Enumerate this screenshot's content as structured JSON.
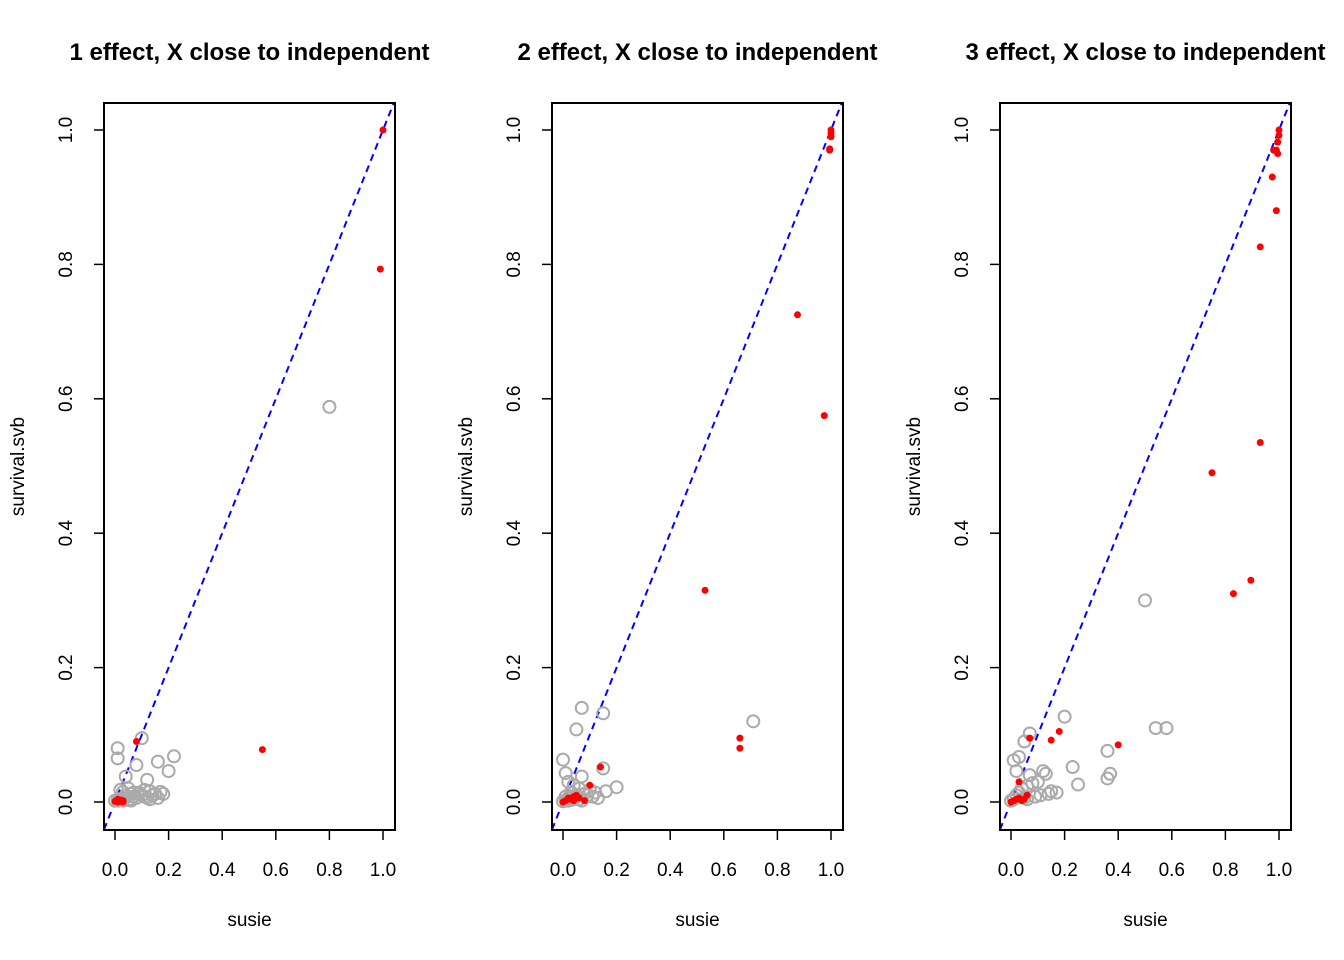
{
  "colors": {
    "reference_line": "#0000ff",
    "causal": "#ff0000",
    "non_causal": "#aaaaaa"
  },
  "chart_data": [
    {
      "type": "scatter",
      "title": "1 effect, X close to independent",
      "xlabel": "susie",
      "ylabel": "survival.svb",
      "xlim": [
        0,
        1
      ],
      "ylim": [
        0,
        1
      ],
      "xticks": [
        "0.0",
        "0.2",
        "0.4",
        "0.6",
        "0.8",
        "1.0"
      ],
      "yticks": [
        "0.0",
        "0.2",
        "0.4",
        "0.6",
        "0.8",
        "1.0"
      ],
      "reference_line": "y = x (dashed)",
      "series": [
        {
          "role": "non_causal",
          "marker": "open circle",
          "x": [
            0.8,
            0.1,
            0.01,
            0.01,
            0.08,
            0.04,
            0.22,
            0.16,
            0.2,
            0.12,
            0.05,
            0.03,
            0.06,
            0.09,
            0.11,
            0.13,
            0.15,
            0.17,
            0.14,
            0.02,
            0.07,
            0.1,
            0.12,
            0.04,
            0.06,
            0.08,
            0.05,
            0.03,
            0.02,
            0.09,
            0.11,
            0.13,
            0.07,
            0.01,
            0.0,
            0.03,
            0.06,
            0.16,
            0.18,
            0.04
          ],
          "y": [
            0.588,
            0.095,
            0.08,
            0.065,
            0.055,
            0.038,
            0.068,
            0.06,
            0.046,
            0.033,
            0.02,
            0.015,
            0.012,
            0.014,
            0.018,
            0.016,
            0.012,
            0.015,
            0.01,
            0.018,
            0.008,
            0.01,
            0.006,
            0.01,
            0.004,
            0.006,
            0.003,
            0.005,
            0.004,
            0.012,
            0.008,
            0.004,
            0.014,
            0.002,
            0.002,
            0.002,
            0.002,
            0.006,
            0.012,
            0.006
          ]
        },
        {
          "role": "causal",
          "marker": "filled dot",
          "x": [
            1.0,
            0.99,
            0.08,
            0.55,
            0.01,
            0.02,
            0.03,
            0.0,
            0.01,
            0.02,
            0.03,
            0.01
          ],
          "y": [
            1.0,
            0.793,
            0.09,
            0.078,
            0.002,
            0.003,
            0.002,
            0.001,
            0.0,
            0.001,
            0.0,
            0.004
          ]
        }
      ]
    },
    {
      "type": "scatter",
      "title": "2 effect, X close to independent",
      "xlabel": "susie",
      "ylabel": "survival.svb",
      "xlim": [
        0,
        1
      ],
      "ylim": [
        0,
        1
      ],
      "xticks": [
        "0.0",
        "0.2",
        "0.4",
        "0.6",
        "0.8",
        "1.0"
      ],
      "yticks": [
        "0.0",
        "0.2",
        "0.4",
        "0.6",
        "0.8",
        "1.0"
      ],
      "reference_line": "y = x (dashed)",
      "series": [
        {
          "role": "non_causal",
          "marker": "open circle",
          "x": [
            0.15,
            0.05,
            0.07,
            0.71,
            0.0,
            0.01,
            0.07,
            0.15,
            0.02,
            0.04,
            0.2,
            0.16,
            0.1,
            0.12,
            0.06,
            0.08,
            0.03,
            0.09,
            0.11,
            0.05,
            0.01,
            0.02,
            0.13,
            0.04,
            0.06,
            0.07,
            0.03,
            0.02,
            0.01,
            0.0
          ],
          "y": [
            0.132,
            0.108,
            0.14,
            0.12,
            0.063,
            0.043,
            0.038,
            0.05,
            0.03,
            0.025,
            0.022,
            0.016,
            0.018,
            0.014,
            0.02,
            0.012,
            0.015,
            0.01,
            0.008,
            0.01,
            0.008,
            0.006,
            0.006,
            0.004,
            0.004,
            0.002,
            0.003,
            0.002,
            0.002,
            0.001
          ]
        },
        {
          "role": "causal",
          "marker": "filled dot",
          "x": [
            1.0,
            1.0,
            0.995,
            0.995,
            1.0,
            0.875,
            0.975,
            0.53,
            0.66,
            0.66,
            0.14,
            0.1,
            0.08,
            0.04,
            0.05,
            0.02,
            0.03,
            0.01,
            0.0,
            0.04,
            0.06,
            0.03
          ],
          "y": [
            1.0,
            0.995,
            0.972,
            0.97,
            0.99,
            0.725,
            0.575,
            0.315,
            0.095,
            0.08,
            0.052,
            0.025,
            0.002,
            0.002,
            0.01,
            0.006,
            0.004,
            0.002,
            0.0,
            0.008,
            0.006,
            0.004
          ]
        }
      ]
    },
    {
      "type": "scatter",
      "title": "3 effect, X close to independent",
      "xlabel": "susie",
      "ylabel": "survival.svb",
      "xlim": [
        0,
        1
      ],
      "ylim": [
        0,
        1
      ],
      "xticks": [
        "0.0",
        "0.2",
        "0.4",
        "0.6",
        "0.8",
        "1.0"
      ],
      "yticks": [
        "0.0",
        "0.2",
        "0.4",
        "0.6",
        "0.8",
        "1.0"
      ],
      "reference_line": "y = x (dashed)",
      "series": [
        {
          "role": "non_causal",
          "marker": "open circle",
          "x": [
            0.5,
            0.54,
            0.58,
            0.36,
            0.37,
            0.36,
            0.2,
            0.23,
            0.25,
            0.07,
            0.05,
            0.03,
            0.01,
            0.02,
            0.07,
            0.12,
            0.13,
            0.1,
            0.08,
            0.06,
            0.04,
            0.15,
            0.14,
            0.11,
            0.09,
            0.03,
            0.02,
            0.05,
            0.17,
            0.01,
            0.0,
            0.06
          ],
          "y": [
            0.3,
            0.11,
            0.11,
            0.076,
            0.042,
            0.035,
            0.127,
            0.052,
            0.026,
            0.102,
            0.09,
            0.067,
            0.062,
            0.046,
            0.04,
            0.046,
            0.042,
            0.03,
            0.028,
            0.024,
            0.02,
            0.016,
            0.012,
            0.01,
            0.008,
            0.014,
            0.01,
            0.006,
            0.014,
            0.004,
            0.002,
            0.004
          ]
        },
        {
          "role": "causal",
          "marker": "filled dot",
          "x": [
            1.0,
            1.0,
            0.995,
            0.99,
            0.995,
            0.98,
            0.975,
            0.99,
            0.93,
            0.75,
            0.93,
            0.83,
            0.895,
            0.4,
            0.18,
            0.15,
            0.07,
            0.03,
            0.06,
            0.02,
            0.01,
            0.04,
            0.03,
            0.05,
            0.0
          ],
          "y": [
            1.0,
            0.992,
            0.982,
            0.97,
            0.965,
            0.97,
            0.93,
            0.88,
            0.826,
            0.49,
            0.535,
            0.31,
            0.33,
            0.085,
            0.105,
            0.092,
            0.095,
            0.03,
            0.01,
            0.004,
            0.002,
            0.002,
            0.006,
            0.004,
            0.0
          ]
        }
      ]
    }
  ]
}
